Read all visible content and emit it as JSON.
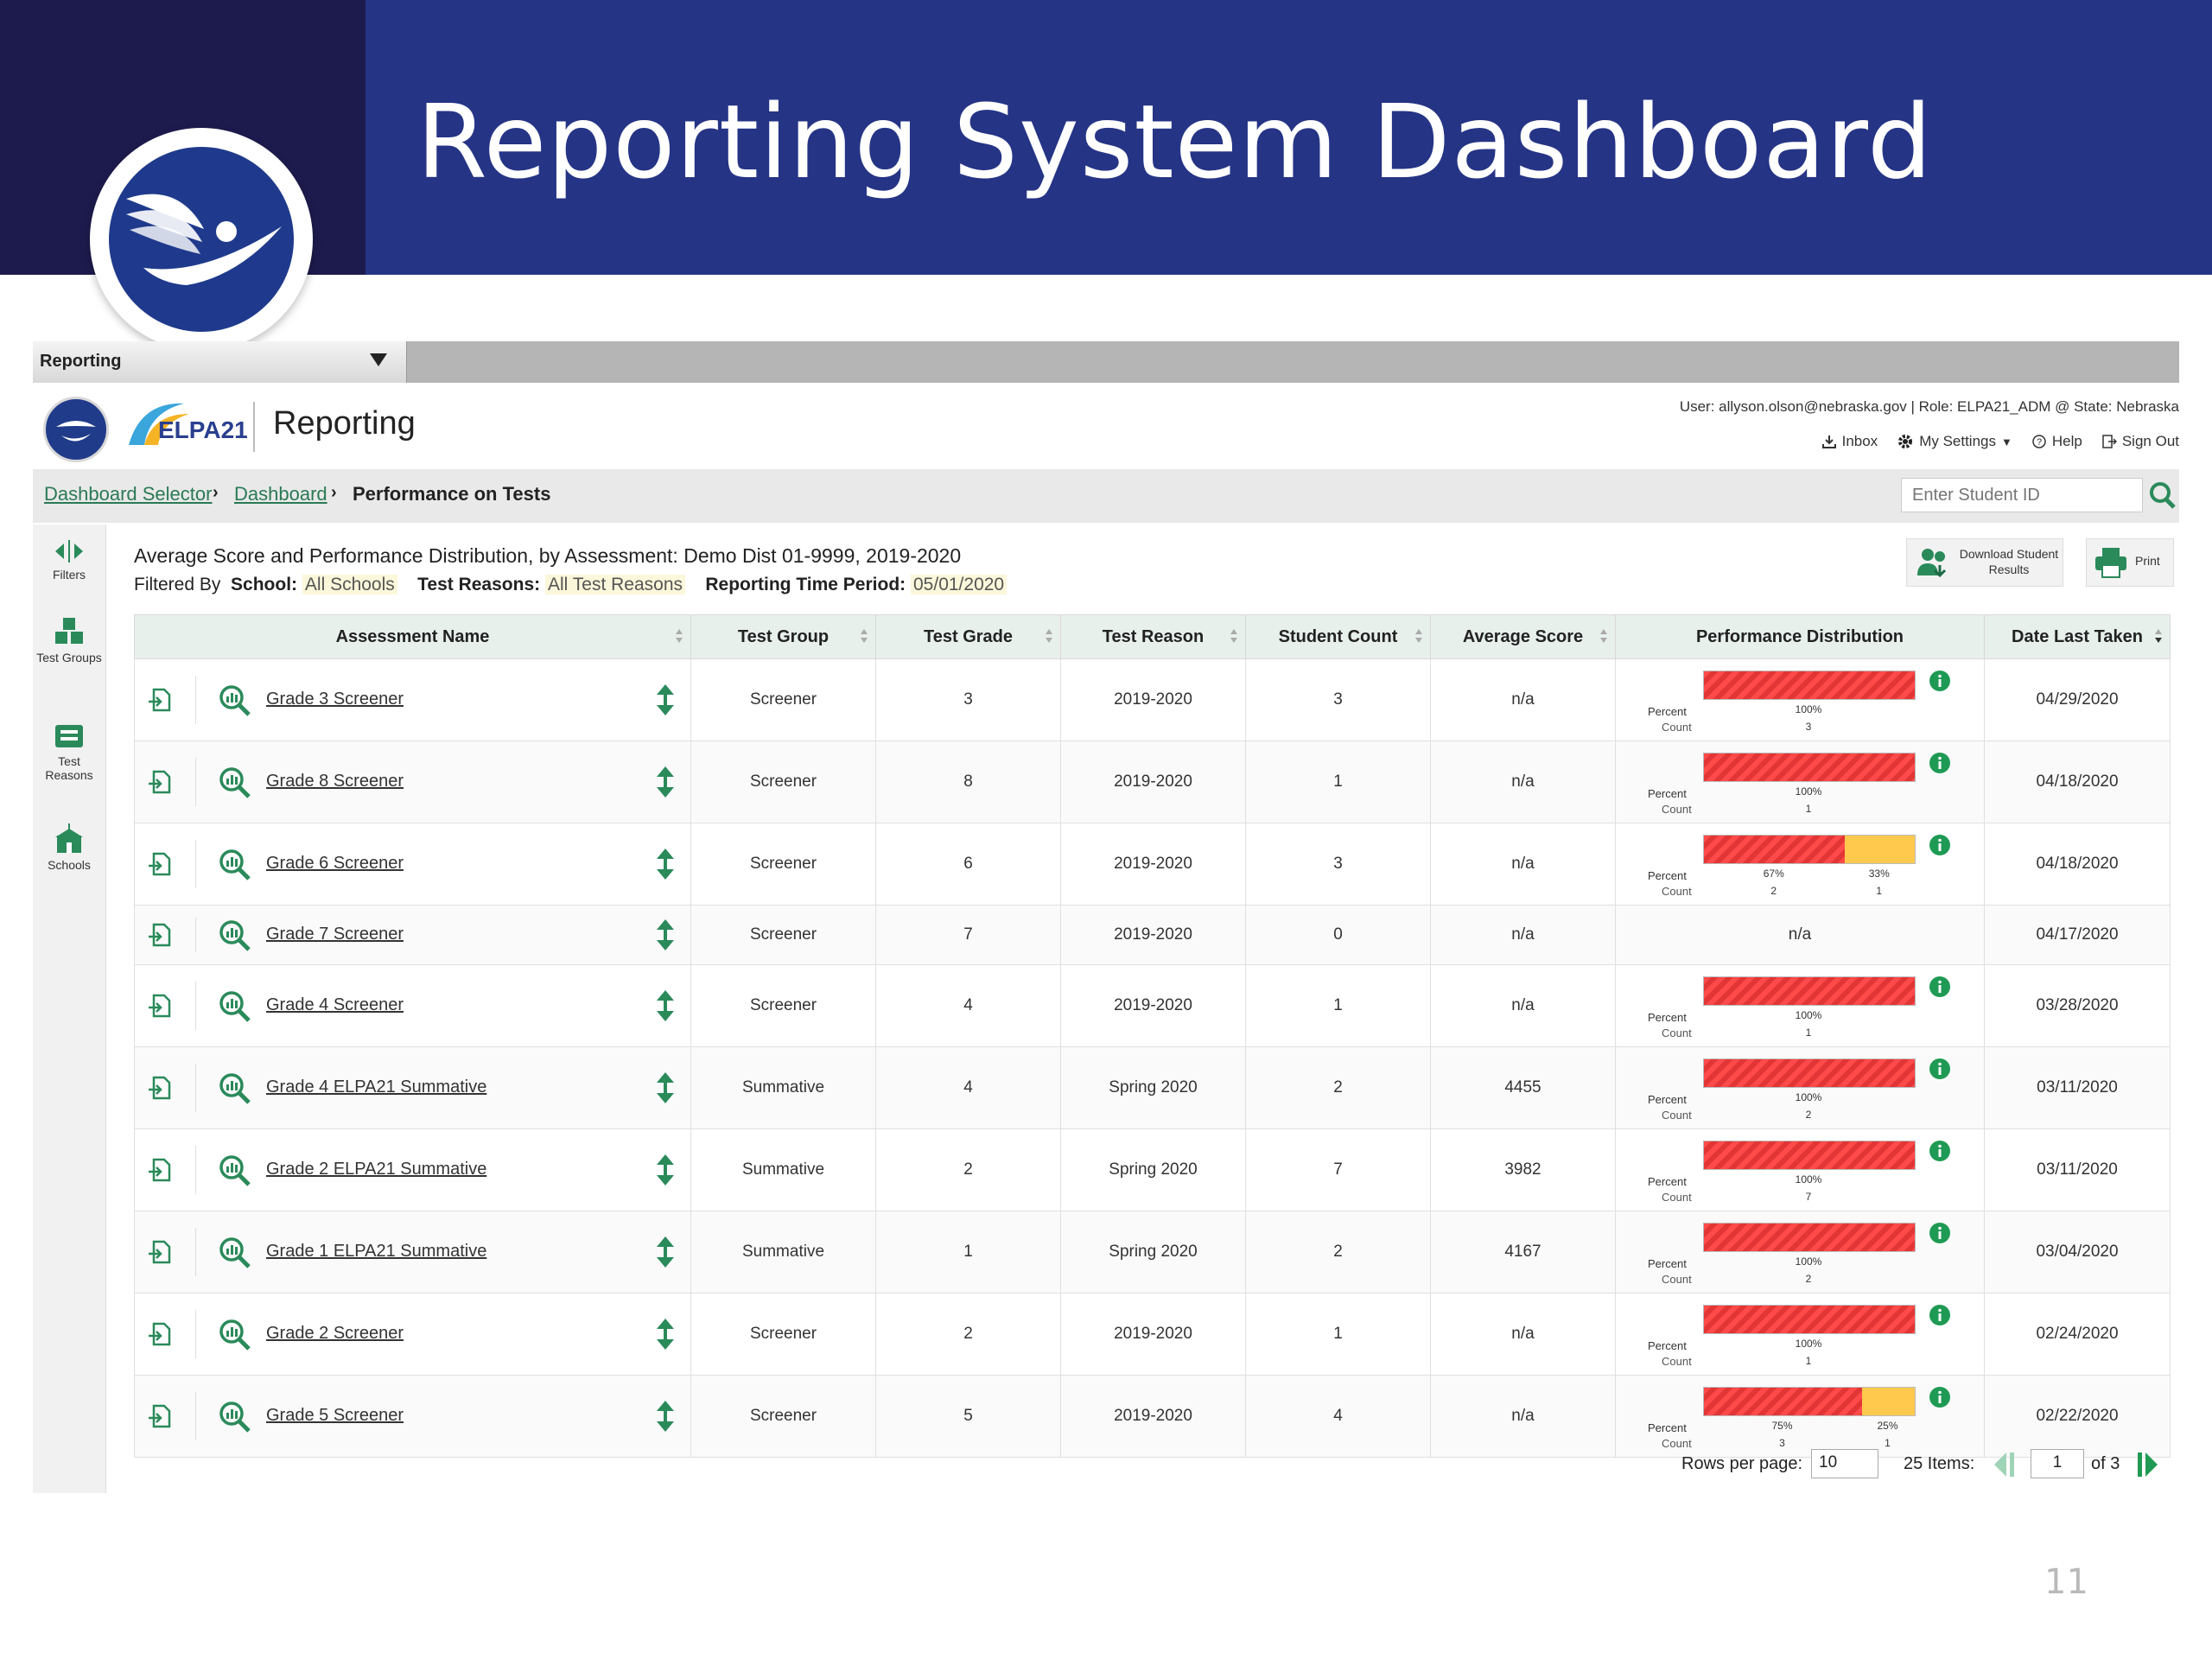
{
  "slide": {
    "title": "Reporting System Dashboard",
    "page_number": "11"
  },
  "menu": {
    "selected": "Reporting"
  },
  "header": {
    "elpa_logo_text": "ELPA21",
    "app_name": "Reporting",
    "user_info": "User: allyson.olson@nebraska.gov  |  Role: ELPA21_ADM @ State: Nebraska",
    "links": {
      "inbox": "Inbox",
      "settings": "My Settings",
      "help": "Help",
      "sign_out": "Sign Out"
    }
  },
  "breadcrumb": {
    "items": [
      "Dashboard Selector",
      "Dashboard"
    ],
    "current": "Performance on Tests"
  },
  "search": {
    "placeholder": "Enter Student ID"
  },
  "sidebar": {
    "filters": "Filters",
    "test_groups": "Test Groups",
    "test_reasons": "Test Reasons",
    "schools": "Schools"
  },
  "report": {
    "title": "Average Score and Performance Distribution, by Assessment: Demo Dist 01-9999, 2019-2020",
    "filtered_by": "Filtered By",
    "school_label": "School:",
    "school_value": "All Schools",
    "reasons_label": "Test Reasons:",
    "reasons_value": "All Test Reasons",
    "period_label": "Reporting Time Period:",
    "period_value": "05/01/2020",
    "download_label": "Download Student Results",
    "print_label": "Print"
  },
  "table": {
    "headers": [
      "Assessment Name",
      "Test Group",
      "Test Grade",
      "Test Reason",
      "Student Count",
      "Average Score",
      "Performance Distribution",
      "Date Last Taken"
    ],
    "percent_label": "Percent",
    "count_label": "Count",
    "rows": [
      {
        "name": "Grade 3 Screener",
        "group": "Screener",
        "grade": "3",
        "reason": "2019-2020",
        "count": "3",
        "avg": "n/a",
        "dist": [
          {
            "color": "red",
            "pct": 100,
            "label": "100%",
            "n": "3"
          }
        ],
        "date": "04/29/2020"
      },
      {
        "name": "Grade 8 Screener",
        "group": "Screener",
        "grade": "8",
        "reason": "2019-2020",
        "count": "1",
        "avg": "n/a",
        "dist": [
          {
            "color": "red",
            "pct": 100,
            "label": "100%",
            "n": "1"
          }
        ],
        "date": "04/18/2020"
      },
      {
        "name": "Grade 6 Screener",
        "group": "Screener",
        "grade": "6",
        "reason": "2019-2020",
        "count": "3",
        "avg": "n/a",
        "dist": [
          {
            "color": "red",
            "pct": 67,
            "label": "67%",
            "n": "2"
          },
          {
            "color": "yellow",
            "pct": 33,
            "label": "33%",
            "n": "1"
          }
        ],
        "date": "04/18/2020"
      },
      {
        "name": "Grade 7 Screener",
        "group": "Screener",
        "grade": "7",
        "reason": "2019-2020",
        "count": "0",
        "avg": "n/a",
        "dist": [],
        "dist_text": "n/a",
        "date": "04/17/2020"
      },
      {
        "name": "Grade 4 Screener",
        "group": "Screener",
        "grade": "4",
        "reason": "2019-2020",
        "count": "1",
        "avg": "n/a",
        "dist": [
          {
            "color": "red",
            "pct": 100,
            "label": "100%",
            "n": "1"
          }
        ],
        "date": "03/28/2020"
      },
      {
        "name": "Grade 4 ELPA21 Summative",
        "group": "Summative",
        "grade": "4",
        "reason": "Spring 2020",
        "count": "2",
        "avg": "4455",
        "dist": [
          {
            "color": "red",
            "pct": 100,
            "label": "100%",
            "n": "2"
          }
        ],
        "date": "03/11/2020"
      },
      {
        "name": "Grade 2 ELPA21 Summative",
        "group": "Summative",
        "grade": "2",
        "reason": "Spring 2020",
        "count": "7",
        "avg": "3982",
        "dist": [
          {
            "color": "red",
            "pct": 100,
            "label": "100%",
            "n": "7"
          }
        ],
        "date": "03/11/2020"
      },
      {
        "name": "Grade 1 ELPA21 Summative",
        "group": "Summative",
        "grade": "1",
        "reason": "Spring 2020",
        "count": "2",
        "avg": "4167",
        "dist": [
          {
            "color": "red",
            "pct": 100,
            "label": "100%",
            "n": "2"
          }
        ],
        "date": "03/04/2020"
      },
      {
        "name": "Grade 2 Screener",
        "group": "Screener",
        "grade": "2",
        "reason": "2019-2020",
        "count": "1",
        "avg": "n/a",
        "dist": [
          {
            "color": "red",
            "pct": 100,
            "label": "100%",
            "n": "1"
          }
        ],
        "date": "02/24/2020"
      },
      {
        "name": "Grade 5 Screener",
        "group": "Screener",
        "grade": "5",
        "reason": "2019-2020",
        "count": "4",
        "avg": "n/a",
        "dist": [
          {
            "color": "red",
            "pct": 75,
            "label": "75%",
            "n": "3"
          },
          {
            "color": "yellow",
            "pct": 25,
            "label": "25%",
            "n": "1"
          }
        ],
        "date": "02/22/2020"
      }
    ]
  },
  "pager": {
    "rows_label": "Rows per page:",
    "rows_value": "10",
    "items": "25 Items:",
    "page_value": "1",
    "of": "of 3"
  },
  "colors": {
    "banner_dark": "#1d1b4d",
    "banner_blue": "#253485",
    "accent_green": "#2a8a5a",
    "bar_red": "#ff4a4a",
    "bar_yellow": "#ffc94d"
  }
}
